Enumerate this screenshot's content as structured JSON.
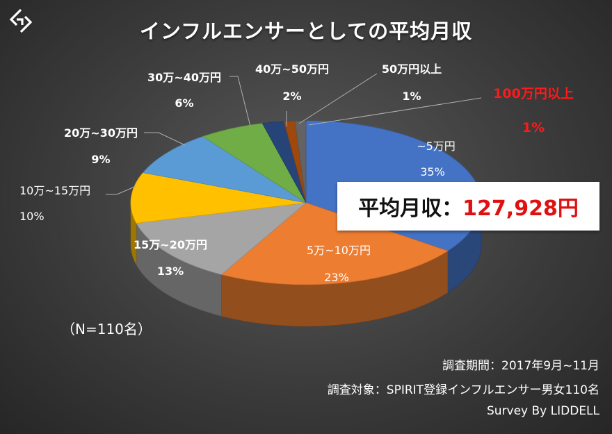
{
  "title": "インフルエンサーとしての平均月収",
  "logo_icon": "diamond-arrow-logo-icon",
  "average_box": {
    "label": "平均月収：",
    "value": "127,928円",
    "value_color": "#e01010"
  },
  "sample_size": "（N=110名）",
  "footer": {
    "period": "調査期間：2017年9月~11月",
    "target": "調査対象：SPIRIT登録インフルエンサー男女110名",
    "credit": "Survey By LIDDELL"
  },
  "chart_data": {
    "type": "pie",
    "title": "インフルエンサーとしての平均月収",
    "style": "3d",
    "unit": "%",
    "categories": [
      "~5万円",
      "5万~10万円",
      "15万~20万円",
      "10万~15万円",
      "20万~30万円",
      "30万~40万円",
      "40万~50万円",
      "50万円以上",
      "100万円以上"
    ],
    "values": [
      35,
      23,
      13,
      10,
      9,
      6,
      2,
      1,
      1
    ],
    "value_labels": [
      "35%",
      "23%",
      "13%",
      "10%",
      "9%",
      "6%",
      "2%",
      "1%",
      "1%"
    ],
    "colors": [
      "#4472c4",
      "#ed7d31",
      "#a5a5a5",
      "#ffc000",
      "#5b9bd5",
      "#70ad47",
      "#264478",
      "#9e480e",
      "#636363"
    ],
    "highlight_color": "#ff1a1a"
  }
}
